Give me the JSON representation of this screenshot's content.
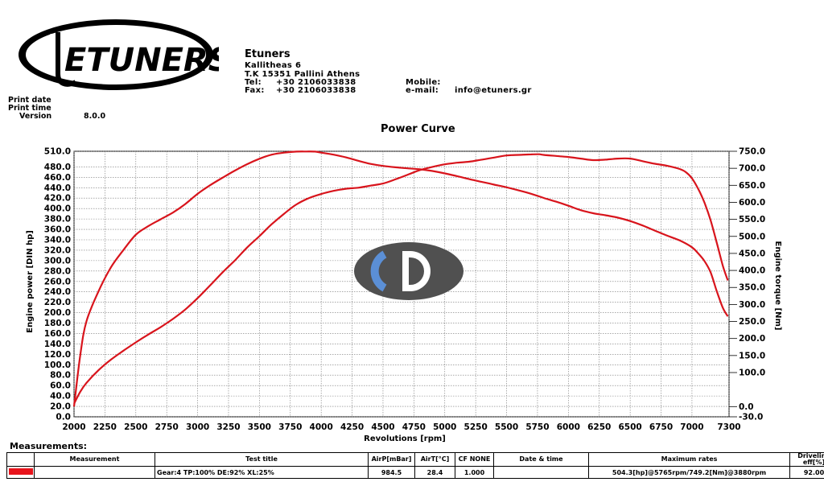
{
  "company": {
    "logo_text": "ETUNERS",
    "name": "Etuners",
    "address1": "Kallitheas 6",
    "address2": "T.K 15351 Pallini Athens",
    "tel_label": "Tel:",
    "tel": "+30 2106033838",
    "fax_label": "Fax:",
    "fax": "+30 2106033838",
    "mobile_label": "Mobile:",
    "email_label": "e-mail:",
    "email": "info@etuners.gr"
  },
  "print_info": {
    "print_date_label": "Print date",
    "print_time_label": "Print time",
    "version_label": "Version",
    "version": "8.0.0"
  },
  "watermark_icon": "cd-logo-icon",
  "chart_data": {
    "type": "line",
    "title": "Power Curve",
    "xlabel": "Revolutions [rpm]",
    "ylabel": "Engine power [DIN hp]",
    "y2label": "Engine torque [Nm]",
    "xlim": [
      2000,
      7300
    ],
    "ylim": [
      0,
      510
    ],
    "y2lim": [
      -30,
      750
    ],
    "x_ticks": [
      2000,
      2250,
      2500,
      2750,
      3000,
      3250,
      3500,
      3750,
      4000,
      4250,
      4500,
      4750,
      5000,
      5250,
      5500,
      5750,
      6000,
      6250,
      6500,
      6750,
      7000,
      7300
    ],
    "y_ticks": [
      "0.0",
      "20.0",
      "40.0",
      "60.0",
      "80.0",
      "100.0",
      "120.0",
      "140.0",
      "160.0",
      "180.0",
      "200.0",
      "220.0",
      "240.0",
      "260.0",
      "280.0",
      "300.0",
      "320.0",
      "340.0",
      "360.0",
      "380.0",
      "400.0",
      "420.0",
      "440.0",
      "460.0",
      "480.0",
      "510.0"
    ],
    "y2_ticks": [
      "-30.0",
      "0.0",
      "100.0",
      "150.0",
      "200.0",
      "250.0",
      "300.0",
      "350.0",
      "400.0",
      "450.0",
      "500.0",
      "550.0",
      "600.0",
      "650.0",
      "700.0",
      "750.0"
    ],
    "grid": true,
    "line_color": "#d8141c",
    "series": [
      {
        "name": "power",
        "axis": "left",
        "x": [
          2000,
          2050,
          2100,
          2200,
          2300,
          2400,
          2500,
          2600,
          2700,
          2800,
          2900,
          3000,
          3100,
          3200,
          3300,
          3400,
          3500,
          3600,
          3700,
          3800,
          3900,
          4000,
          4100,
          4200,
          4300,
          4400,
          4500,
          4600,
          4700,
          4800,
          4900,
          5000,
          5100,
          5200,
          5300,
          5400,
          5500,
          5600,
          5700,
          5765,
          5800,
          5900,
          6000,
          6100,
          6200,
          6300,
          6400,
          6500,
          6600,
          6700,
          6800,
          6900,
          6950,
          7000,
          7050,
          7100,
          7150,
          7200,
          7250,
          7290
        ],
        "y": [
          25,
          48,
          65,
          90,
          110,
          127,
          143,
          158,
          172,
          188,
          206,
          228,
          252,
          277,
          300,
          325,
          347,
          370,
          390,
          408,
          420,
          428,
          434,
          438,
          440,
          444,
          448,
          456,
          465,
          474,
          480,
          485,
          488,
          490,
          494,
          498,
          502,
          503,
          504,
          504.3,
          503,
          501,
          499,
          496,
          493,
          494,
          496,
          496,
          491,
          486,
          482,
          476,
          470,
          458,
          438,
          412,
          378,
          335,
          290,
          262
        ]
      },
      {
        "name": "torque",
        "axis": "right",
        "x": [
          2000,
          2050,
          2100,
          2200,
          2300,
          2400,
          2500,
          2600,
          2700,
          2800,
          2900,
          3000,
          3100,
          3200,
          3300,
          3400,
          3500,
          3600,
          3700,
          3800,
          3880,
          3950,
          4000,
          4100,
          4200,
          4300,
          4400,
          4500,
          4600,
          4700,
          4800,
          4900,
          5000,
          5100,
          5200,
          5300,
          5400,
          5500,
          5600,
          5700,
          5800,
          5900,
          6000,
          6100,
          6200,
          6300,
          6400,
          6500,
          6600,
          6700,
          6800,
          6900,
          7000,
          7050,
          7100,
          7150,
          7200,
          7250,
          7290
        ],
        "y": [
          0,
          150,
          250,
          340,
          410,
          460,
          505,
          530,
          550,
          570,
          595,
          625,
          650,
          672,
          693,
          712,
          728,
          740,
          746,
          749,
          749.2,
          749,
          746,
          740,
          732,
          722,
          713,
          707,
          703,
          700,
          697,
          692,
          685,
          677,
          668,
          660,
          652,
          644,
          635,
          625,
          613,
          602,
          590,
          577,
          568,
          562,
          555,
          545,
          532,
          517,
          502,
          488,
          468,
          450,
          428,
          395,
          340,
          290,
          265
        ]
      }
    ]
  },
  "measurements": {
    "title": "Measurements:",
    "headers": {
      "measurement": "Measurement",
      "test_title": "Test title",
      "air_p": "AirP[mBar]",
      "air_t": "AirT[°C]",
      "cf": "CF NONE",
      "date_time": "Date & time",
      "max_rates": "Maximum rates",
      "driveline": "Driveline eff[%]"
    },
    "row": {
      "test_title": "Gear:4 TP:100% DE:92% XL:25%",
      "air_p": "984.5",
      "air_t": "28.4",
      "cf": "1.000",
      "date_time": "",
      "max_rates": "504.3[hp]@5765rpm/749.2[Nm]@3880rpm",
      "driveline": "92.00",
      "swatch_color": "#e8141c"
    }
  }
}
